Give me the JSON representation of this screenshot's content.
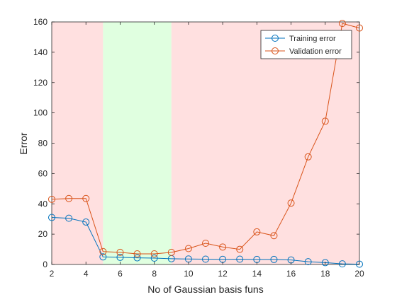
{
  "chart_data": {
    "type": "line",
    "xlabel": "No of Gaussian basis funs",
    "ylabel": "Error",
    "xlim": [
      2,
      20
    ],
    "ylim": [
      0,
      160
    ],
    "xticks": [
      2,
      4,
      6,
      8,
      10,
      12,
      14,
      16,
      18,
      20
    ],
    "yticks": [
      0,
      20,
      40,
      60,
      80,
      100,
      120,
      140,
      160
    ],
    "grid": false,
    "legend_position": "top-right",
    "shaded_regions": [
      {
        "x": [
          2,
          5
        ],
        "color": "#ffe0e0"
      },
      {
        "x": [
          5,
          9
        ],
        "color": "#e0ffe0"
      },
      {
        "x": [
          9,
          20
        ],
        "color": "#ffe0e0"
      }
    ],
    "x": [
      2,
      3,
      4,
      5,
      6,
      7,
      8,
      9,
      10,
      11,
      12,
      13,
      14,
      15,
      16,
      17,
      18,
      19,
      20
    ],
    "series": [
      {
        "name": "Training error",
        "color": "#0072bd",
        "marker": "circle",
        "values": [
          31,
          30.5,
          28,
          5,
          4.7,
          4.4,
          4.2,
          3.8,
          3.6,
          3.5,
          3.4,
          3.5,
          3.3,
          3.3,
          3,
          1.8,
          1.2,
          0.4,
          0.2
        ]
      },
      {
        "name": "Validation error",
        "color": "#d95319",
        "marker": "circle",
        "values": [
          43,
          43.5,
          43.5,
          8.5,
          8,
          7,
          7,
          8,
          10.5,
          14,
          11.5,
          10,
          21.5,
          19,
          40.5,
          71,
          94.5,
          159,
          156
        ]
      }
    ]
  }
}
